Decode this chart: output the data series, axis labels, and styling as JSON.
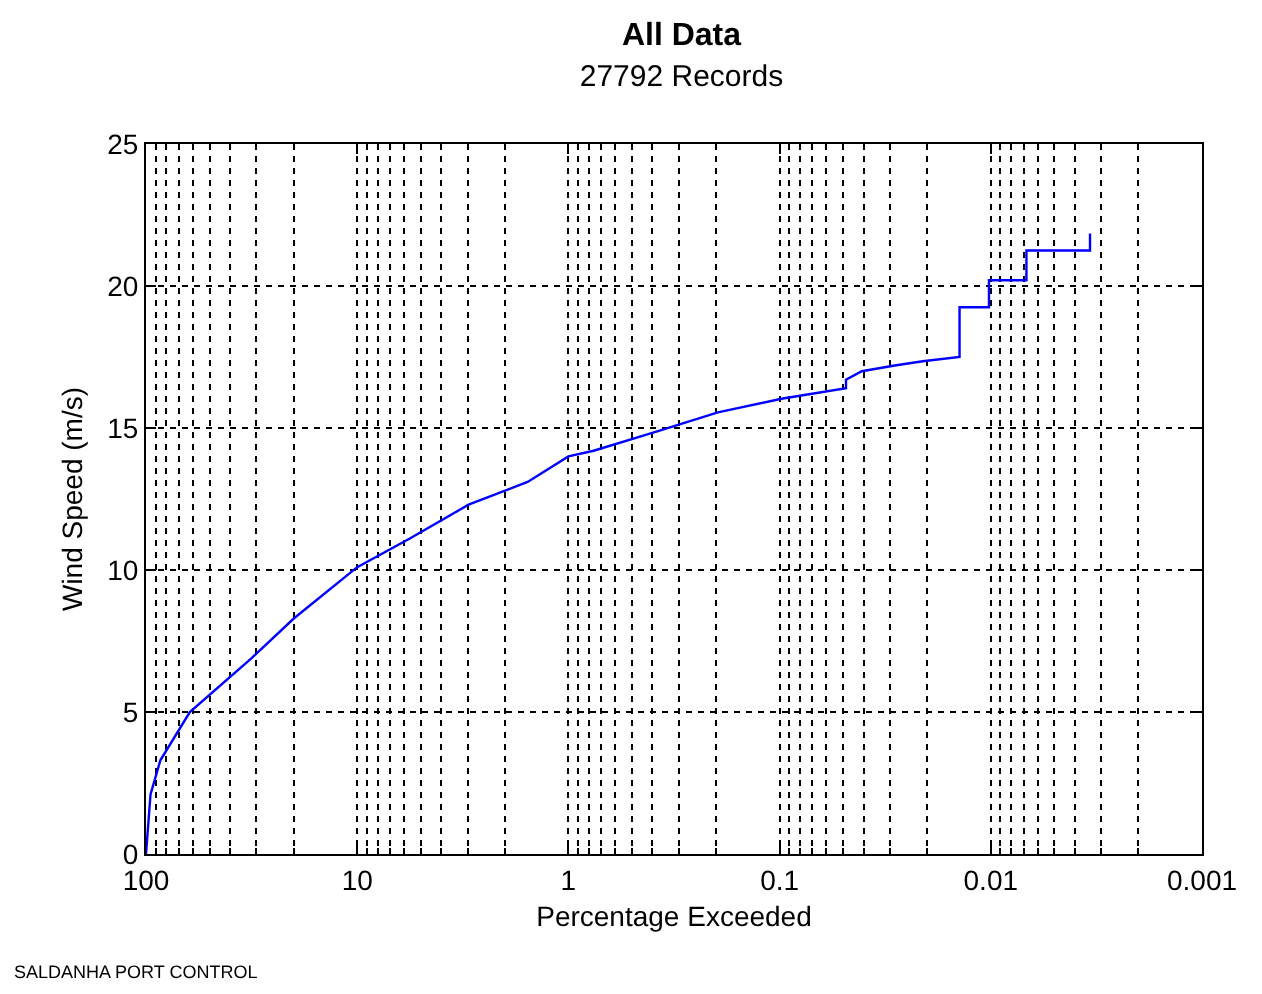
{
  "chart_data": {
    "type": "line",
    "title": "All Data",
    "subtitle": "27792 Records",
    "xlabel": "Percentage Exceeded",
    "ylabel": "Wind Speed (m/s)",
    "log": "x",
    "x": [
      100,
      95.2,
      85.5,
      62,
      31.6,
      19.9,
      10,
      5.66,
      2.97,
      1.56,
      1,
      0.76,
      0.373,
      0.196,
      0.098,
      0.0485,
      0.0485,
      0.0408,
      0.0285,
      0.021,
      0.01406,
      0.01406,
      0.0102,
      0.0102,
      0.00678,
      0.00678,
      0.00339,
      0.00339
    ],
    "series": [
      {
        "color": "#0000ff",
        "values": [
          0,
          2.1,
          3.3,
          5,
          6.9,
          8.3,
          10.1,
          11.1,
          12.3,
          13.1,
          14,
          14.2,
          14.9,
          15.55,
          16.03,
          16.4,
          16.7,
          17,
          17.2,
          17.35,
          17.5,
          19.25,
          19.25,
          20.2,
          20.2,
          21.25,
          21.25,
          21.85
        ]
      }
    ],
    "xlim": [
      100,
      0.001
    ],
    "xticks": [
      100,
      10,
      1,
      0.1,
      0.01,
      0.001
    ],
    "ylim": [
      0,
      25
    ],
    "yticks": [
      0,
      5,
      10,
      15,
      20,
      25
    ],
    "grid": true,
    "line_style": "solid",
    "marker": "none",
    "annotations": [
      "SALDANHA PORT CONTROL"
    ]
  }
}
